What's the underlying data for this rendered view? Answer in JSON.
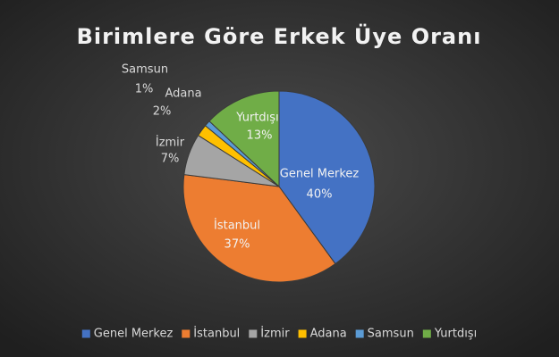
{
  "chart_data": {
    "type": "pie",
    "title": "Birimlere Göre Erkek Üye Oranı",
    "categories": [
      "Genel Merkez",
      "İstanbul",
      "İzmir",
      "Adana",
      "Samsun",
      "Yurtdışı"
    ],
    "values": [
      40,
      37,
      7,
      2,
      1,
      13
    ],
    "value_labels": [
      "40%",
      "37%",
      "7%",
      "2%",
      "1%",
      "13%"
    ],
    "colors": [
      "#4472c4",
      "#ed7d31",
      "#a5a5a5",
      "#ffc000",
      "#5b9bd5",
      "#70ad47"
    ],
    "legend": "bottom"
  }
}
